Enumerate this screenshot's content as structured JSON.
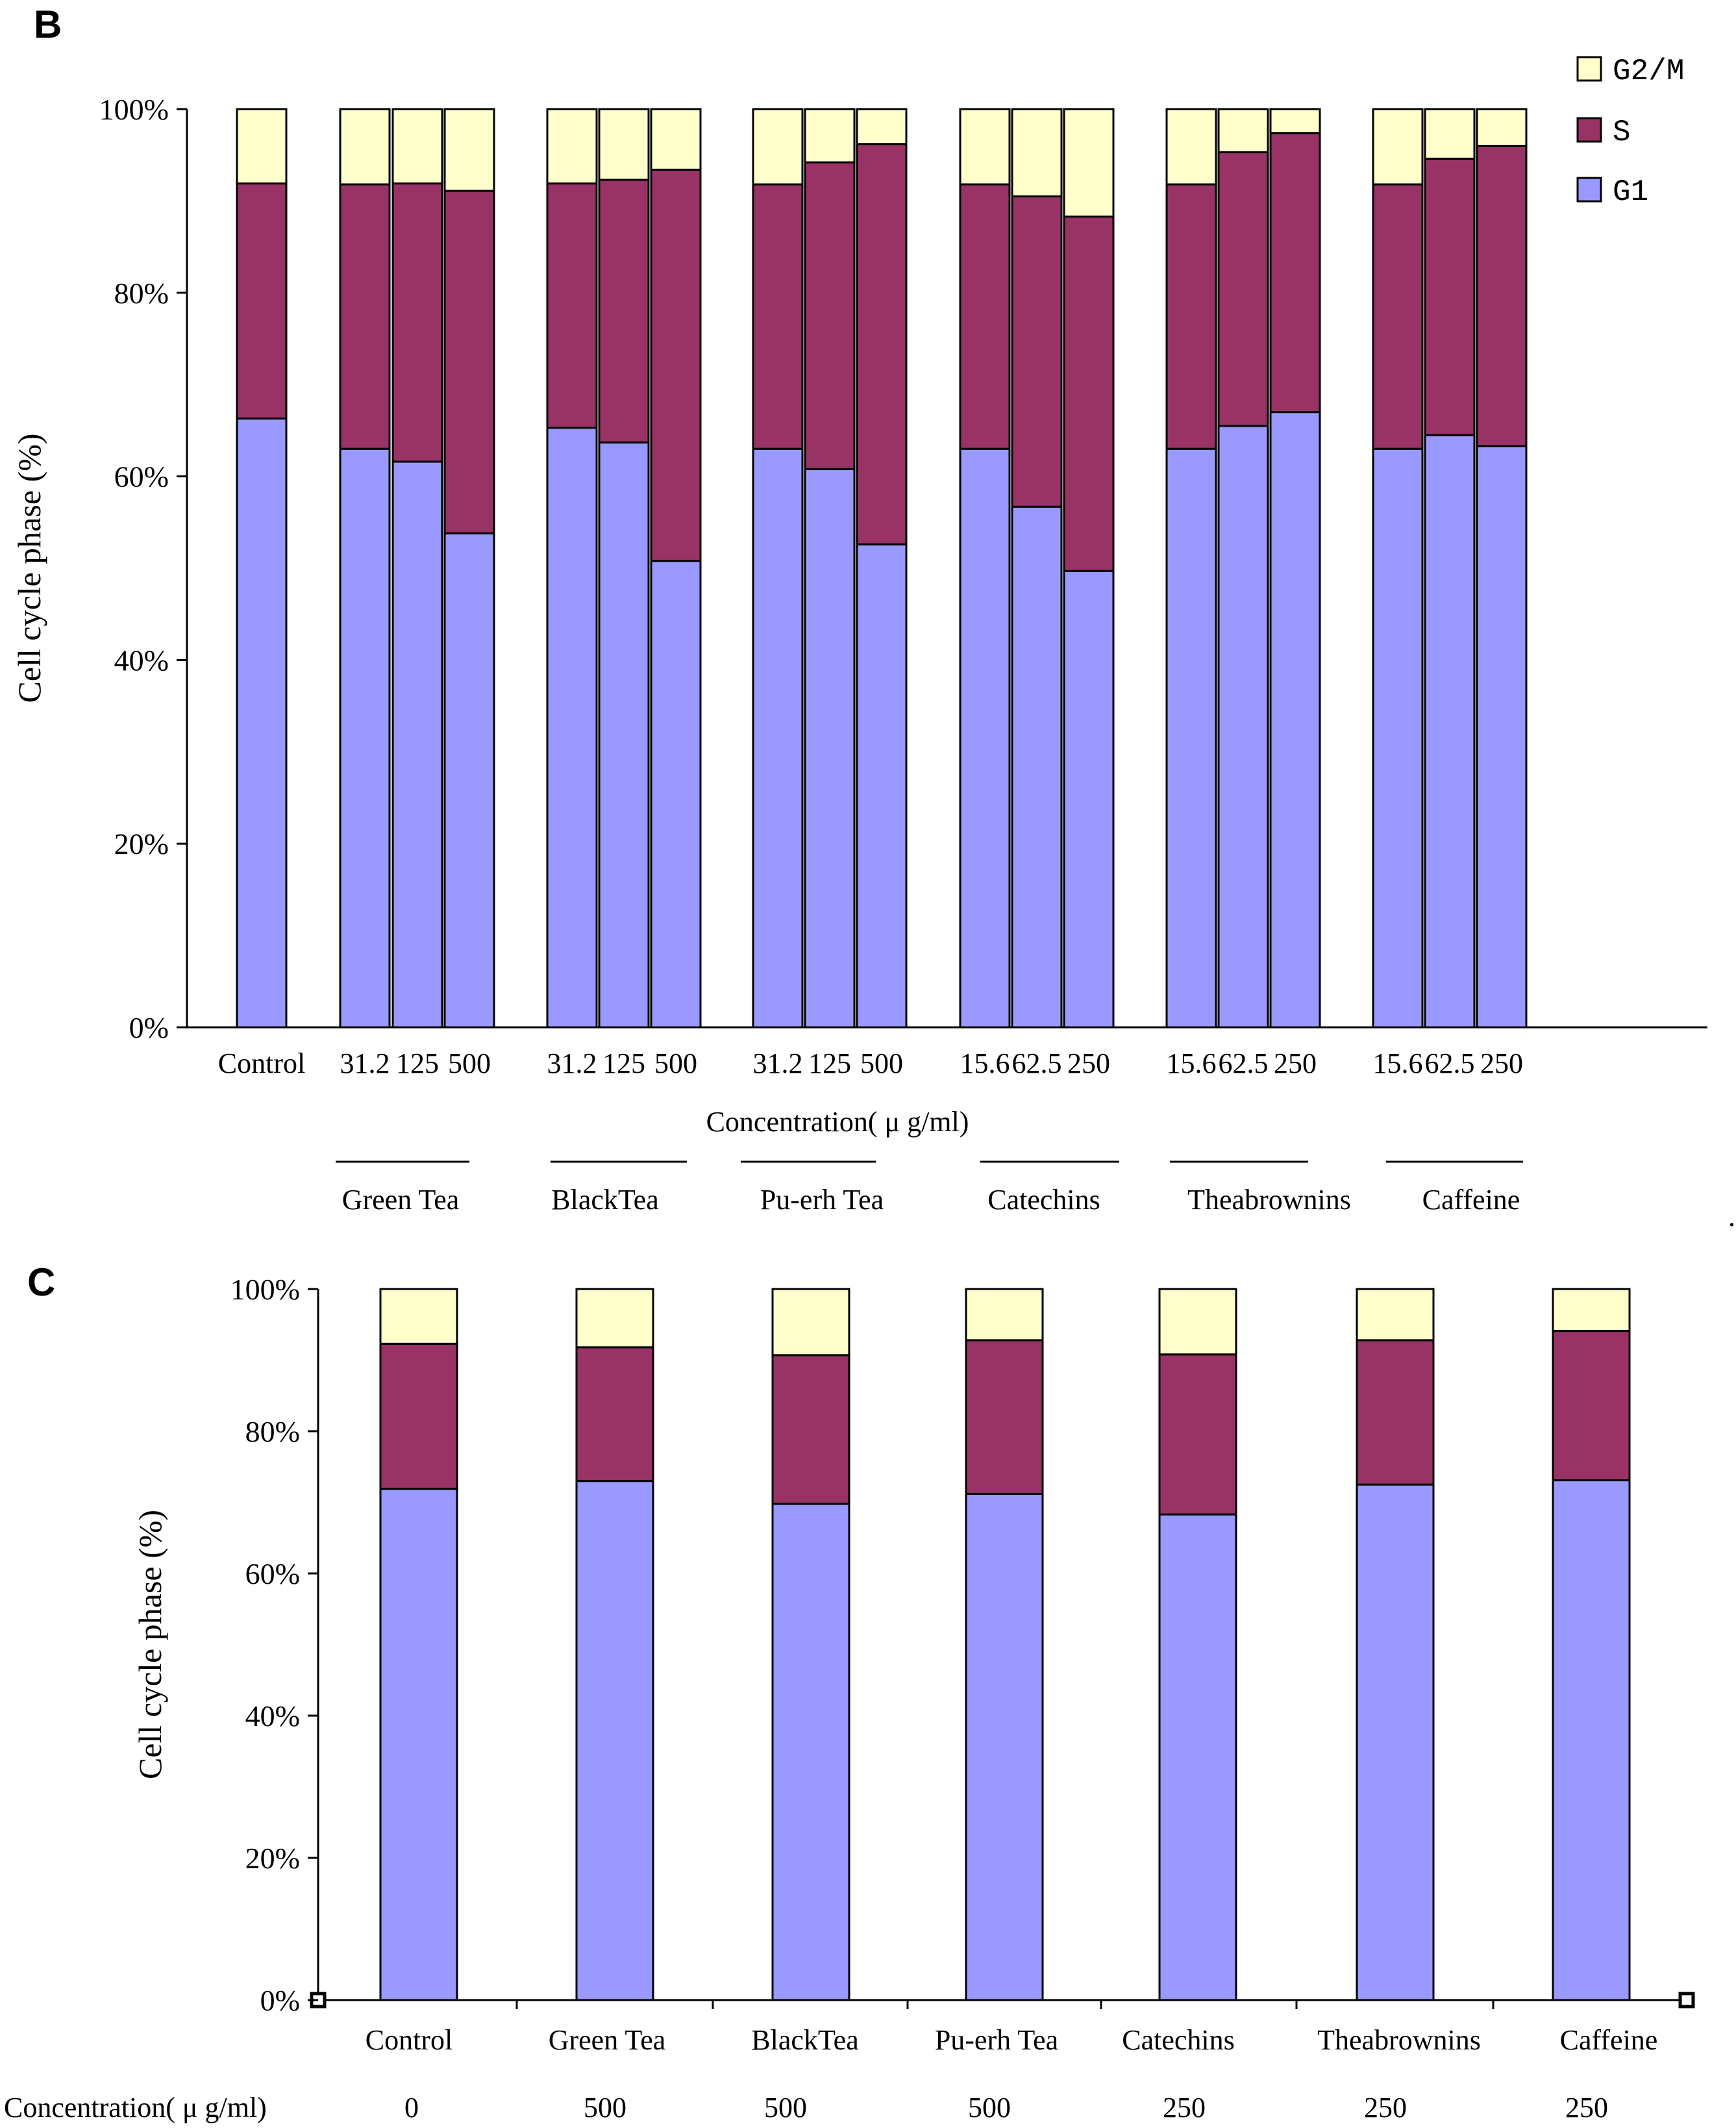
{
  "colors": {
    "G1": "#9999ff",
    "S": "#993366",
    "G2M": "#ffffcc",
    "outline": "#000000"
  },
  "chart_data": [
    {
      "panel": "B",
      "type": "bar",
      "stacked": true,
      "ylabel": "Cell cycle phase (%)",
      "xlabel": "Concentration( μ g/ml)",
      "yticks": [
        "0%",
        "20%",
        "40%",
        "60%",
        "80%",
        "100%"
      ],
      "ylim": [
        0,
        100
      ],
      "legend": [
        "G2/M",
        "S",
        "G1"
      ],
      "legend_position": "top-right",
      "groups": [
        "Green Tea",
        "BlackTea",
        "Pu-erh Tea",
        "Catechins",
        "Theabrownins",
        "Caffeine"
      ],
      "categories": [
        "Control",
        "31.2",
        "125",
        "500",
        "31.2",
        "125",
        "500",
        "31.2",
        "125",
        "500",
        "15.6",
        "62.5",
        "250",
        "15.6",
        "62.5",
        "250",
        "15.6",
        "62.5",
        "250"
      ],
      "series": [
        {
          "name": "G1",
          "values": [
            66.3,
            63.0,
            61.6,
            53.8,
            65.3,
            63.7,
            50.8,
            63.0,
            60.8,
            52.6,
            63.0,
            56.7,
            49.7,
            63.0,
            65.5,
            67.0,
            63.0,
            64.5,
            63.3
          ]
        },
        {
          "name": "S",
          "values": [
            25.6,
            28.8,
            30.3,
            37.3,
            26.6,
            28.6,
            42.6,
            28.8,
            33.4,
            43.6,
            28.8,
            33.8,
            38.6,
            28.8,
            29.8,
            30.4,
            28.8,
            30.1,
            32.7
          ]
        },
        {
          "name": "G2/M",
          "values": [
            8.1,
            8.2,
            8.1,
            8.9,
            8.1,
            7.7,
            6.6,
            8.2,
            5.8,
            3.8,
            8.2,
            9.5,
            11.7,
            8.2,
            4.7,
            2.6,
            8.2,
            5.4,
            4.0
          ]
        }
      ]
    },
    {
      "panel": "C",
      "type": "bar",
      "stacked": true,
      "ylabel": "Cell cycle phase (%)",
      "row_label": "Concentration( μ g/ml)",
      "yticks": [
        "0%",
        "20%",
        "40%",
        "60%",
        "80%",
        "100%"
      ],
      "ylim": [
        0,
        100
      ],
      "categories": [
        "Control",
        "Green Tea",
        "BlackTea",
        "Pu-erh Tea",
        "Catechins",
        "Theabrownins",
        "Caffeine"
      ],
      "concentrations": [
        "0",
        "500",
        "500",
        "500",
        "250",
        "250",
        "250"
      ],
      "series": [
        {
          "name": "G1",
          "values": [
            71.9,
            73.0,
            69.8,
            71.2,
            68.3,
            72.5,
            73.1
          ]
        },
        {
          "name": "S",
          "values": [
            20.4,
            18.8,
            20.9,
            21.6,
            22.5,
            20.3,
            21.0
          ]
        },
        {
          "name": "G2/M",
          "values": [
            7.7,
            8.2,
            9.3,
            7.2,
            9.2,
            7.2,
            5.9
          ]
        }
      ]
    }
  ]
}
